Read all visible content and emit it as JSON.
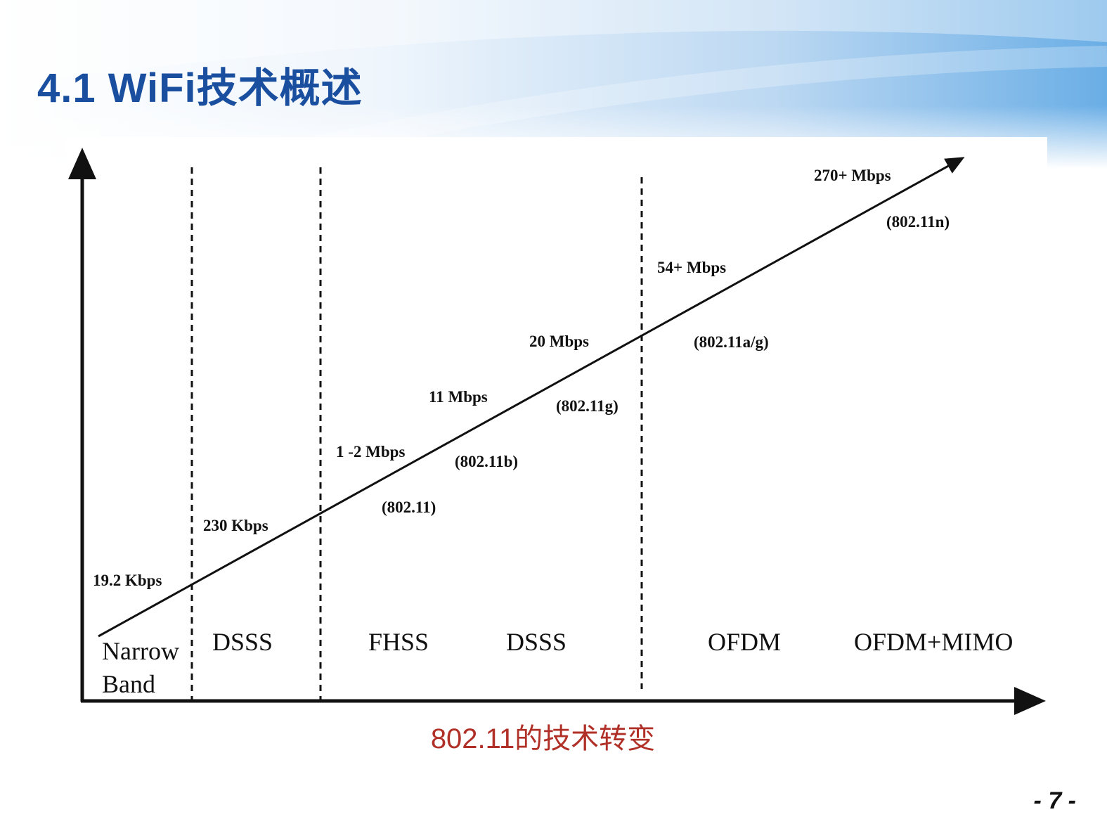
{
  "slide": {
    "title": "4.1  WiFi技术概述",
    "caption": "802.11的技术转变",
    "page_number": "- 7 -",
    "title_color": "#1a4fa0",
    "caption_color": "#b03028"
  },
  "diagram": {
    "rates": [
      "19.2 Kbps",
      "230 Kbps",
      "1 -2 Mbps",
      "11 Mbps",
      "20 Mbps",
      "54+ Mbps",
      "270+ Mbps"
    ],
    "standards": [
      "(802.11)",
      "(802.11b)",
      "(802.11g)",
      "(802.11a/g)",
      "(802.11n)"
    ],
    "technologies": {
      "narrowband_line1": "Narrow",
      "narrowband_line2": "Band",
      "dsss_1": "DSSS",
      "fhss": "FHSS",
      "dsss_2": "DSSS",
      "ofdm": "OFDM",
      "ofdm_mimo": "OFDM+MIMO"
    }
  }
}
